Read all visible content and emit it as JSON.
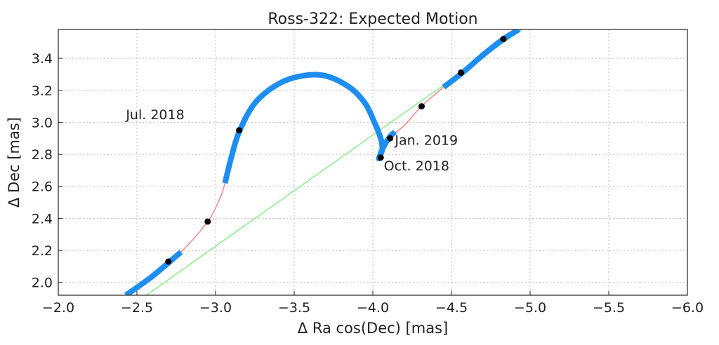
{
  "chart_data": {
    "type": "line",
    "title": "Ross-322: Expected Motion",
    "xlabel": "Δ Ra cos(Dec) [mas]",
    "ylabel": "Δ Dec [mas]",
    "xlim": [
      -2.0,
      -6.0
    ],
    "ylim": [
      1.92,
      3.58
    ],
    "x_ticks": [
      "−2.0",
      "−2.5",
      "−3.0",
      "−3.5",
      "−4.0",
      "−4.5",
      "−5.0",
      "−5.5",
      "−6.0"
    ],
    "x_tick_values": [
      -2.0,
      -2.5,
      -3.0,
      -3.5,
      -4.0,
      -4.5,
      -5.0,
      -5.5,
      -6.0
    ],
    "y_ticks": [
      "2.0",
      "2.2",
      "2.4",
      "2.6",
      "2.8",
      "3.0",
      "3.2",
      "3.4"
    ],
    "y_tick_values": [
      2.0,
      2.2,
      2.4,
      2.6,
      2.8,
      3.0,
      3.2,
      3.4
    ],
    "grid": true,
    "colors": {
      "linear": "#90ee90",
      "path": "#f08080",
      "observable": "#1f8ef1",
      "epoch": "#000000"
    },
    "series": [
      {
        "style": "linear",
        "x": [
          -2.56,
          -4.95
        ],
        "y": [
          1.92,
          3.58
        ]
      },
      {
        "style": "path",
        "x": [
          -2.43,
          -2.6,
          -2.78,
          -2.95,
          -3.03,
          -3.06,
          -3.1,
          -3.15,
          -3.25,
          -3.4,
          -3.55,
          -3.7,
          -3.85,
          -3.95,
          -4.01,
          -4.05,
          -4.06,
          -4.04,
          -4.04,
          -4.06,
          -4.1,
          -4.2,
          -4.31,
          -4.45,
          -4.57,
          -4.7,
          -4.83,
          -4.93
        ],
        "y": [
          1.92,
          2.04,
          2.19,
          2.38,
          2.53,
          2.62,
          2.78,
          2.94,
          3.12,
          3.24,
          3.29,
          3.29,
          3.22,
          3.12,
          3.0,
          2.9,
          2.83,
          2.78,
          2.78,
          2.83,
          2.9,
          2.98,
          3.1,
          3.22,
          3.31,
          3.42,
          3.52,
          3.58
        ]
      },
      {
        "style": "observable",
        "x": [
          -2.43,
          -2.6,
          -2.78
        ],
        "y": [
          1.92,
          2.04,
          2.19
        ]
      },
      {
        "style": "observable",
        "x": [
          -3.06,
          -3.1,
          -3.15,
          -3.25,
          -3.4,
          -3.55,
          -3.7,
          -3.85,
          -3.95,
          -4.01,
          -4.05,
          -4.06,
          -4.04,
          -4.04,
          -4.06,
          -4.1,
          -4.14
        ],
        "y": [
          2.62,
          2.78,
          2.94,
          3.12,
          3.24,
          3.29,
          3.29,
          3.22,
          3.12,
          3.0,
          2.9,
          2.83,
          2.78,
          2.78,
          2.83,
          2.9,
          2.94
        ]
      },
      {
        "style": "observable",
        "x": [
          -4.45,
          -4.57,
          -4.7,
          -4.83,
          -4.93
        ],
        "y": [
          3.22,
          3.31,
          3.42,
          3.52,
          3.58
        ]
      }
    ],
    "epochs": {
      "x": [
        -2.7,
        -2.95,
        -3.15,
        -4.05,
        -4.11,
        -4.31,
        -4.56,
        -4.83
      ],
      "y": [
        2.13,
        2.38,
        2.95,
        2.78,
        2.9,
        3.1,
        3.31,
        3.52
      ]
    },
    "annotations": [
      {
        "text": "Jul. 2018",
        "x": -2.43,
        "y": 3.02
      },
      {
        "text": "Oct. 2018",
        "x": -4.07,
        "y": 2.7
      },
      {
        "text": "Jan. 2019",
        "x": -4.14,
        "y": 2.86
      }
    ]
  }
}
